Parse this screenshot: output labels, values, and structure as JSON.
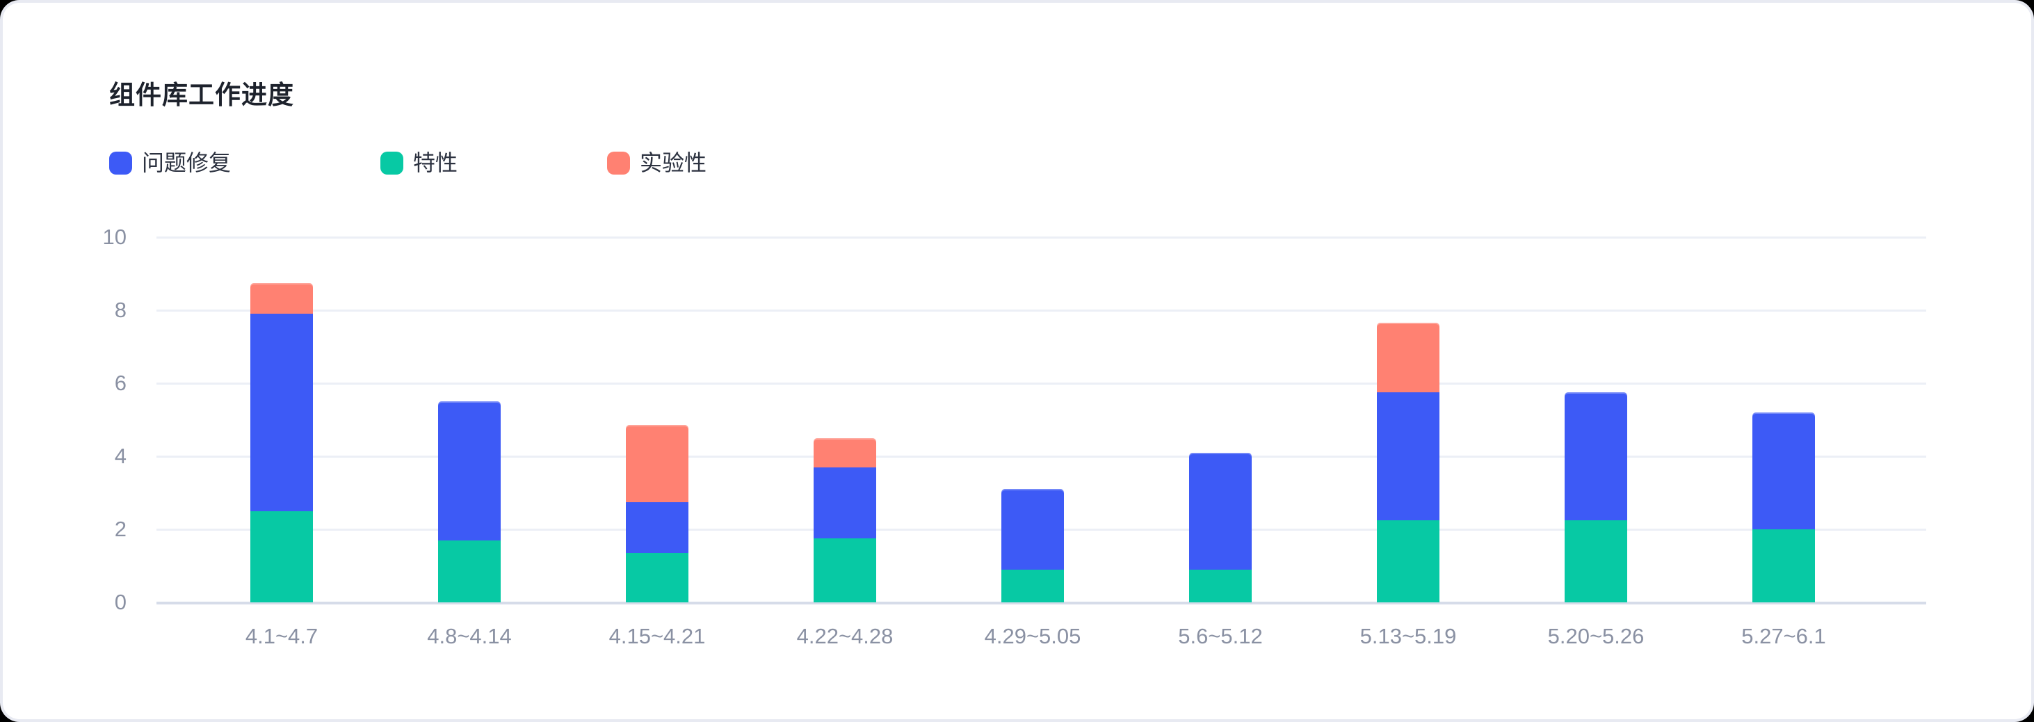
{
  "card": {
    "title": "组件库工作进度"
  },
  "chart_data": {
    "type": "bar",
    "stacked": true,
    "title": "组件库工作进度",
    "legend_position": "top-left",
    "grid": true,
    "xlabel": "",
    "ylabel": "",
    "ylim": [
      0,
      10
    ],
    "yticks": [
      0,
      2,
      4,
      6,
      8,
      10
    ],
    "categories": [
      "4.1~4.7",
      "4.8~4.14",
      "4.15~4.21",
      "4.22~4.28",
      "4.29~5.05",
      "5.6~5.12",
      "5.13~5.19",
      "5.20~5.26",
      "5.27~6.1"
    ],
    "series": [
      {
        "id": "bugfix",
        "name": "问题修复",
        "color": "#3D5AF6",
        "values": [
          5.4,
          3.8,
          1.4,
          1.95,
          2.2,
          3.2,
          3.5,
          3.5,
          3.2
        ]
      },
      {
        "id": "feature",
        "name": "特性",
        "color": "#07C9A4",
        "values": [
          2.5,
          1.7,
          1.35,
          1.75,
          0.9,
          0.9,
          2.25,
          2.25,
          2.0
        ]
      },
      {
        "id": "experimental",
        "name": "实验性",
        "color": "#FF8172",
        "values": [
          0.85,
          0,
          2.1,
          0.8,
          0,
          0,
          1.9,
          0,
          0
        ]
      }
    ],
    "stack_order": [
      "feature",
      "bugfix",
      "experimental"
    ],
    "totals": [
      8.75,
      5.5,
      4.85,
      4.5,
      3.1,
      4.1,
      7.65,
      5.75,
      5.2
    ]
  },
  "colors": {
    "page_background": "#E8EAF2",
    "card_background": "#FFFFFF",
    "title_text": "#1D222C",
    "axis_text": "#8A91A3",
    "gridline": "#ECEFF6",
    "zero_line": "#D6DCE9"
  }
}
